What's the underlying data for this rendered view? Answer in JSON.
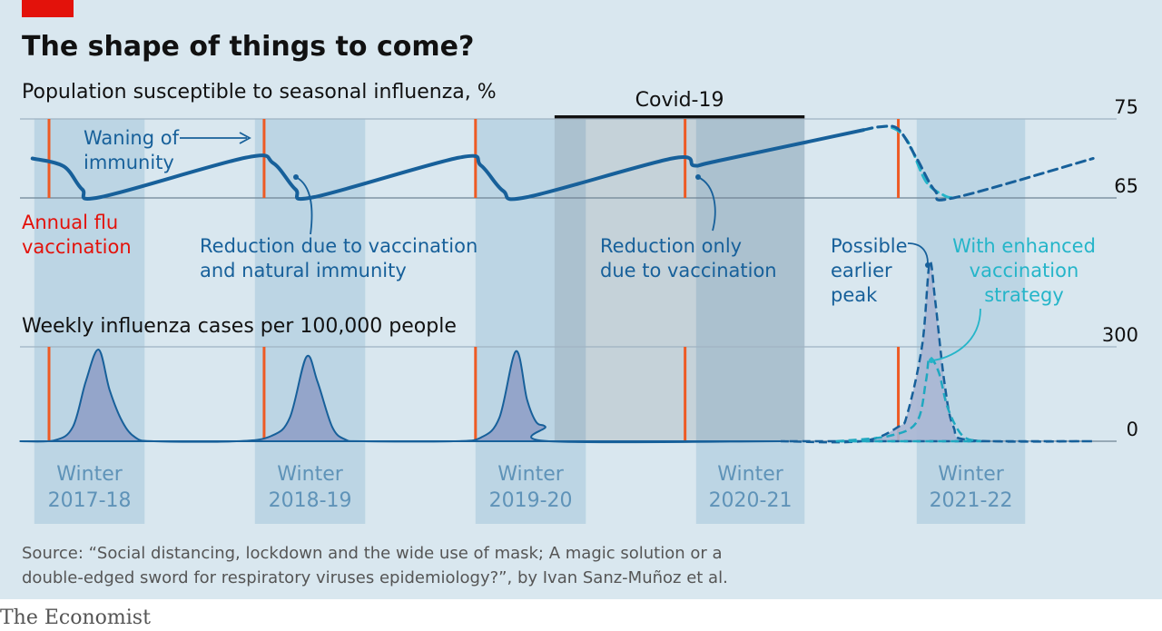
{
  "header": {
    "title": "The shape of things to come?"
  },
  "periods": [
    {
      "label": [
        "Winter",
        "2017-18"
      ],
      "start": 8.2,
      "end": 14.2
    },
    {
      "label": [
        "Winter",
        "2018-19"
      ],
      "start": 20.2,
      "end": 26.2
    },
    {
      "label": [
        "Winter",
        "2019-20"
      ],
      "start": 32.2,
      "end": 38.2
    },
    {
      "label": [
        "Winter",
        "2020-21"
      ],
      "start": 44.2,
      "end": 50.1
    },
    {
      "label": [
        "Winter",
        "2021-22"
      ],
      "start": 56.2,
      "end": 62.1
    }
  ],
  "covid": {
    "label": "Covid-19",
    "start": 36.5,
    "end": 50.1
  },
  "vaccinations": [
    9.0,
    20.7,
    32.2,
    43.6,
    55.2
  ],
  "chart_data": [
    {
      "type": "line",
      "subtitle": "Population susceptible to seasonal influenza, %",
      "xlim": [
        7,
        67
      ],
      "ylim": [
        65,
        75
      ],
      "yticks": [
        75,
        65
      ],
      "grid": true,
      "series": [
        {
          "color": "#17609a",
          "dash": false,
          "x": [
            8.1,
            9.8,
            10.8,
            11.8,
            19.7,
            21.2,
            22.4,
            23.4,
            31.3,
            32.5,
            33.7,
            35.0,
            42.9,
            44.1,
            45.4,
            53.3
          ],
          "values": [
            70.0,
            69.0,
            66.1,
            65.1,
            70.1,
            69.4,
            66.1,
            65.1,
            70.1,
            69.1,
            65.9,
            65.1,
            70.0,
            69.1,
            69.7,
            73.6
          ]
        },
        {
          "color": "#25b5c9",
          "dash": true,
          "x": [
            53.3,
            54.7,
            55.7,
            56.7,
            57.7,
            58.2
          ],
          "values": [
            73.6,
            74.0,
            72.2,
            67.1,
            65.3,
            65.0
          ]
        },
        {
          "color": "#17609a",
          "dash": true,
          "x": [
            53.3,
            54.2,
            55.2,
            56.2,
            57.2,
            58.2,
            65.8
          ],
          "values": [
            73.6,
            74.0,
            73.7,
            70.0,
            65.9,
            65.0,
            70.0
          ]
        }
      ],
      "annotations": [
        {
          "lines": [
            "Waning of",
            "immunity"
          ],
          "color": "#17609a"
        },
        {
          "lines": [
            "Annual flu",
            "vaccination"
          ],
          "color": "#e3120b"
        },
        {
          "lines": [
            "Reduction due to vaccination",
            "and natural immunity"
          ],
          "color": "#17609a"
        },
        {
          "lines": [
            "Reduction only",
            "due to vaccination"
          ],
          "color": "#17609a"
        }
      ]
    },
    {
      "type": "area",
      "subtitle": "Weekly influenza cases per 100,000 people",
      "xlim": [
        7,
        67
      ],
      "ylim": [
        0,
        300
      ],
      "yticks": [
        300,
        0
      ],
      "grid": true,
      "series": [
        {
          "color": "#17609a",
          "fill": "#8fa0c6",
          "dash": false,
          "x": [
            7.4,
            9.3,
            10.3,
            11.0,
            11.7,
            12.3,
            13.0,
            13.7,
            14.7,
            19.2,
            21.1,
            22.1,
            23.0,
            23.6,
            24.4,
            25.1,
            26.1,
            31.0,
            32.5,
            33.5,
            34.4,
            35.0,
            35.5,
            36.0,
            36.2,
            48.8
          ],
          "values": [
            0,
            3,
            46,
            190,
            291,
            162,
            61,
            12,
            0,
            0,
            17,
            75,
            268,
            190,
            46,
            6,
            0,
            0,
            12,
            75,
            286,
            133,
            61,
            46,
            0,
            0
          ]
        },
        {
          "color": "#17609a",
          "fill": "#a9b6d3",
          "dash": true,
          "x": [
            48.8,
            53.2,
            55.2,
            55.7,
            56.5,
            56.9,
            57.2,
            57.7,
            58.2,
            59.2,
            65.8
          ],
          "values": [
            0,
            0,
            46,
            89,
            306,
            565,
            450,
            190,
            46,
            3,
            0
          ]
        },
        {
          "color": "#1fa8c0",
          "fill": "none",
          "dash": true,
          "x": [
            51.8,
            54.7,
            56.2,
            56.7,
            56.9,
            57.4,
            57.9,
            58.7,
            59.7
          ],
          "values": [
            0,
            17,
            61,
            190,
            265,
            219,
            104,
            17,
            0
          ]
        }
      ],
      "annotations": [
        {
          "lines": [
            "Possible",
            "earlier",
            "peak"
          ],
          "color": "#17609a"
        },
        {
          "lines": [
            "With enhanced",
            "vaccination",
            "strategy"
          ],
          "color": "#25b5c9"
        }
      ]
    }
  ],
  "footer": {
    "source": [
      "Source: “Social distancing, lockdown and the wide use of mask; A magic solution or a",
      "double-edged sword for respiratory viruses epidemiology?”, by Ivan Sanz-Muñoz et al."
    ],
    "brand": "The Economist"
  }
}
